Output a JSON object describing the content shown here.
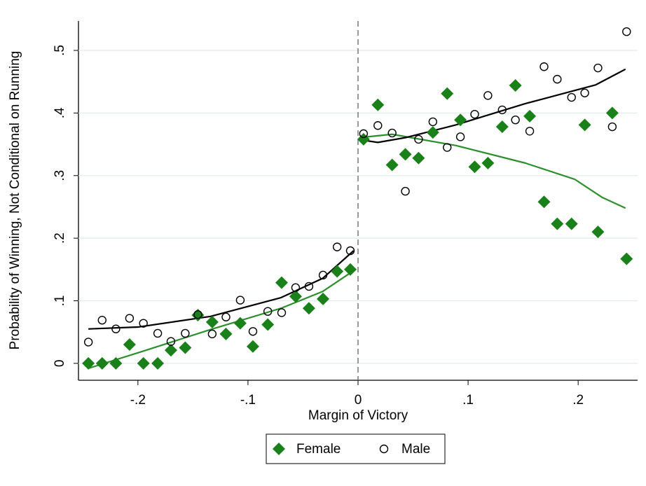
{
  "chart_data": {
    "type": "scatter",
    "x_label": "Margin of Victory",
    "y_label": "Probability of Winning, Not Conditional on Running",
    "xlim": [
      -0.254,
      0.254
    ],
    "ylim": [
      -0.027,
      0.547
    ],
    "xticks": [
      {
        "value": -0.2,
        "label": "-.2"
      },
      {
        "value": -0.1,
        "label": "-.1"
      },
      0,
      {
        "value": 0.1,
        "label": ".1"
      },
      {
        "value": 0.2,
        "label": ".2"
      }
    ],
    "yticks": [
      0,
      {
        "value": 0.1,
        "label": ".1"
      },
      {
        "value": 0.2,
        "label": ".2"
      },
      {
        "value": 0.3,
        "label": ".3"
      },
      {
        "value": 0.4,
        "label": ".4"
      },
      {
        "value": 0.5,
        "label": ".5"
      }
    ],
    "grid": true,
    "cutoff": 0,
    "legend": "bottom",
    "series": [
      {
        "name": "Female",
        "marker": "diamond",
        "color": "#1a801a",
        "x": [
          -0.245,
          -0.2325,
          -0.22,
          -0.2076,
          -0.195,
          -0.182,
          -0.17,
          -0.157,
          -0.1455,
          -0.1325,
          -0.12,
          -0.107,
          -0.0955,
          -0.082,
          -0.0694,
          -0.0567,
          -0.0446,
          -0.0318,
          -0.019,
          -0.007,
          0.005,
          0.018,
          0.031,
          0.043,
          0.055,
          0.068,
          0.081,
          0.093,
          0.106,
          0.118,
          0.131,
          0.143,
          0.156,
          0.169,
          0.181,
          0.194,
          0.206,
          0.218,
          0.231,
          0.244
        ],
        "values": [
          0,
          0,
          0,
          0.03,
          0,
          0,
          0.021,
          0.025,
          0.077,
          0.066,
          0.047,
          0.064,
          0.027,
          0.062,
          0.129,
          0.107,
          0.088,
          0.103,
          0.147,
          0.15,
          0.358,
          0.413,
          0.317,
          0.334,
          0.328,
          0.369,
          0.431,
          0.389,
          0.314,
          0.32,
          0.378,
          0.444,
          0.395,
          0.258,
          0.223,
          0.223,
          0.381,
          0.21,
          0.4,
          0.167
        ]
      },
      {
        "name": "Male",
        "marker": "circle",
        "color": "#000000",
        "x": [
          -0.245,
          -0.2325,
          -0.22,
          -0.2076,
          -0.195,
          -0.182,
          -0.17,
          -0.157,
          -0.1455,
          -0.1325,
          -0.12,
          -0.107,
          -0.0955,
          -0.082,
          -0.0694,
          -0.0567,
          -0.0446,
          -0.0318,
          -0.019,
          -0.007,
          0.005,
          0.018,
          0.031,
          0.043,
          0.055,
          0.068,
          0.081,
          0.093,
          0.106,
          0.118,
          0.131,
          0.143,
          0.156,
          0.169,
          0.181,
          0.194,
          0.206,
          0.218,
          0.231,
          0.244
        ],
        "values": [
          0.034,
          0.069,
          0.055,
          0.072,
          0.064,
          0.048,
          0.035,
          0.048,
          0.078,
          0.047,
          0.074,
          0.101,
          0.051,
          0.083,
          0.081,
          0.121,
          0.123,
          0.141,
          0.186,
          0.18,
          0.367,
          0.38,
          0.368,
          0.275,
          0.358,
          0.386,
          0.345,
          0.362,
          0.398,
          0.428,
          0.405,
          0.389,
          0.371,
          0.474,
          0.454,
          0.425,
          0.432,
          0.472,
          0.378,
          0.53
        ]
      }
    ],
    "fits": [
      {
        "color": "#2b8f2b",
        "x": [
          -0.245,
          -0.198,
          -0.134,
          -0.07,
          -0.032,
          -0.004
        ],
        "values": [
          -0.008,
          0.018,
          0.054,
          0.088,
          0.115,
          0.148
        ]
      },
      {
        "color": "#2b8f2b",
        "x": [
          0.003,
          0.031,
          0.089,
          0.152,
          0.197,
          0.222,
          0.243
        ],
        "values": [
          0.361,
          0.366,
          0.348,
          0.32,
          0.294,
          0.265,
          0.248
        ]
      },
      {
        "color": "#000000",
        "x": [
          -0.245,
          -0.2,
          -0.134,
          -0.07,
          -0.032,
          -0.004
        ],
        "values": [
          0.055,
          0.058,
          0.075,
          0.105,
          0.136,
          0.18
        ]
      },
      {
        "color": "#000000",
        "x": [
          0.003,
          0.018,
          0.044,
          0.089,
          0.152,
          0.216,
          0.243
        ],
        "values": [
          0.357,
          0.353,
          0.361,
          0.381,
          0.415,
          0.445,
          0.47
        ]
      }
    ]
  }
}
